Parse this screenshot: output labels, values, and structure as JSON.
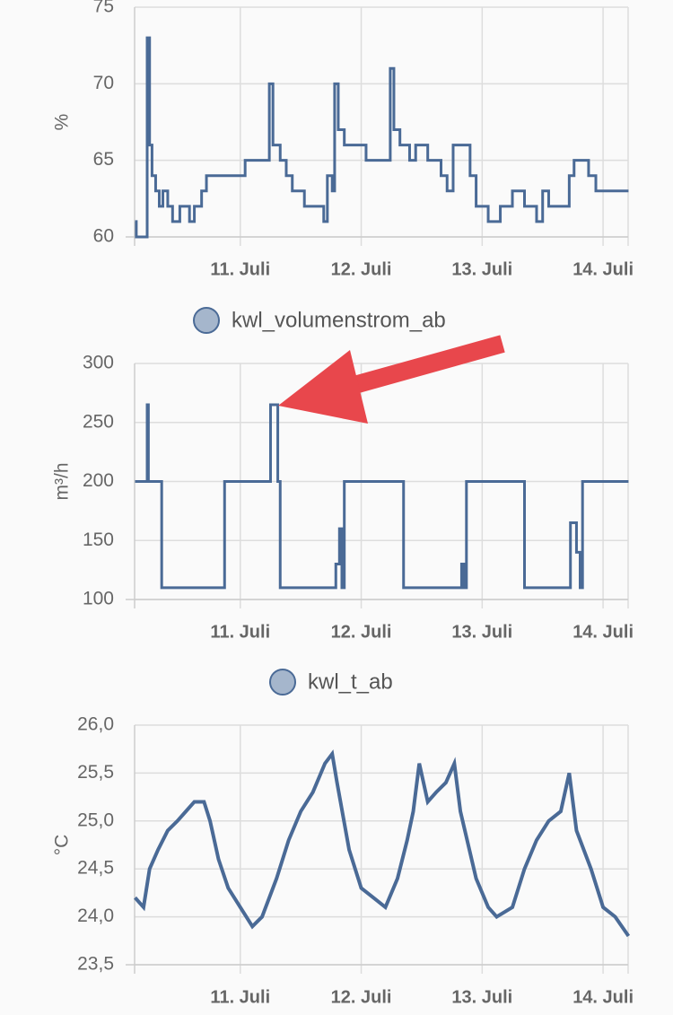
{
  "chart_data": [
    {
      "type": "line",
      "step": true,
      "y_label": "%",
      "x": [
        10.13,
        10.14,
        10.23,
        10.23,
        10.25,
        10.27,
        10.3,
        10.33,
        10.36,
        10.4,
        10.44,
        10.5,
        10.58,
        10.62,
        10.68,
        10.72,
        10.95,
        11.04,
        11.24,
        11.24,
        11.27,
        11.33,
        11.38,
        11.43,
        11.53,
        11.64,
        11.69,
        11.72,
        11.76,
        11.78,
        11.81,
        11.86,
        12.04,
        12.22,
        12.24,
        12.27,
        12.32,
        12.4,
        12.45,
        12.55,
        12.66,
        12.71,
        12.76,
        12.9,
        12.95,
        13.05,
        13.15,
        13.25,
        13.35,
        13.45,
        13.5,
        13.55,
        13.69,
        13.72,
        13.76,
        13.88,
        13.94,
        14.21
      ],
      "series": [
        {
          "color": "#4a6a96",
          "values": [
            61,
            60,
            60,
            73,
            66,
            64,
            63,
            62,
            63,
            62,
            61,
            62,
            61,
            62,
            63,
            64,
            64,
            65,
            65,
            70,
            66,
            65,
            64,
            63,
            62,
            62,
            61,
            64,
            63,
            70,
            67,
            66,
            65,
            65,
            71,
            67,
            66,
            65,
            66,
            65,
            64,
            63,
            66,
            64,
            62,
            61,
            62,
            63,
            62,
            61,
            63,
            62,
            62,
            64,
            65,
            64,
            63,
            63
          ]
        }
      ],
      "xlim": [
        10.126,
        14.207
      ],
      "xticks": [
        {
          "value": 11,
          "label": "11. Juli"
        },
        {
          "value": 12,
          "label": "12. Juli"
        },
        {
          "value": 13,
          "label": "13. Juli"
        },
        {
          "value": 14,
          "label": "14. Juli"
        }
      ],
      "ylim": [
        60,
        75
      ],
      "yticks": [
        60,
        65,
        70,
        75
      ],
      "grid": true
    },
    {
      "type": "line",
      "step": true,
      "y_label": "m³/h",
      "x": [
        10.13,
        10.2,
        10.23,
        10.24,
        10.33,
        10.35,
        10.85,
        10.87,
        11.24,
        11.25,
        11.29,
        11.31,
        11.33,
        11.75,
        11.79,
        11.82,
        11.84,
        11.86,
        12.33,
        12.35,
        12.8,
        12.83,
        12.85,
        12.87,
        13.33,
        13.35,
        13.71,
        13.73,
        13.78,
        13.81,
        13.83,
        14.21
      ],
      "series": [
        {
          "name": "kwl_volumenstrom_ab",
          "color": "#4a6a96",
          "values": [
            200,
            200,
            265,
            200,
            200,
            110,
            110,
            200,
            200,
            265,
            265,
            200,
            110,
            110,
            130,
            160,
            110,
            200,
            200,
            110,
            110,
            130,
            110,
            200,
            200,
            110,
            110,
            165,
            140,
            110,
            200,
            200
          ]
        }
      ],
      "xlim": [
        10.126,
        14.207
      ],
      "xticks": [
        {
          "value": 11,
          "label": "11. Juli"
        },
        {
          "value": 12,
          "label": "12. Juli"
        },
        {
          "value": 13,
          "label": "13. Juli"
        },
        {
          "value": 14,
          "label": "14. Juli"
        }
      ],
      "ylim": [
        100,
        300
      ],
      "yticks": [
        100,
        150,
        200,
        250,
        300
      ],
      "grid": true
    },
    {
      "type": "line",
      "step": false,
      "y_label": "°C",
      "x": [
        10.13,
        10.2,
        10.25,
        10.32,
        10.4,
        10.48,
        10.55,
        10.62,
        10.7,
        10.75,
        10.82,
        10.9,
        11.0,
        11.1,
        11.18,
        11.3,
        11.4,
        11.5,
        11.6,
        11.7,
        11.76,
        11.8,
        11.9,
        12.0,
        12.1,
        12.2,
        12.3,
        12.38,
        12.43,
        12.48,
        12.55,
        12.62,
        12.7,
        12.77,
        12.82,
        12.95,
        13.05,
        13.12,
        13.25,
        13.35,
        13.45,
        13.55,
        13.65,
        13.72,
        13.78,
        13.9,
        14.0,
        14.1,
        14.21
      ],
      "series": [
        {
          "name": "kwl_t_ab",
          "color": "#4a6a96",
          "values": [
            24.2,
            24.1,
            24.5,
            24.7,
            24.9,
            25.0,
            25.1,
            25.2,
            25.2,
            25.0,
            24.6,
            24.3,
            24.1,
            23.9,
            24.0,
            24.4,
            24.8,
            25.1,
            25.3,
            25.6,
            25.7,
            25.4,
            24.7,
            24.3,
            24.2,
            24.1,
            24.4,
            24.8,
            25.1,
            25.6,
            25.2,
            25.3,
            25.4,
            25.6,
            25.1,
            24.4,
            24.1,
            24.0,
            24.1,
            24.5,
            24.8,
            25.0,
            25.1,
            25.5,
            24.9,
            24.5,
            24.1,
            24.0,
            23.8
          ]
        }
      ],
      "xlim": [
        10.126,
        14.207
      ],
      "xticks": [
        {
          "value": 11,
          "label": "11. Juli"
        },
        {
          "value": 12,
          "label": "12. Juli"
        },
        {
          "value": 13,
          "label": "13. Juli"
        },
        {
          "value": 14,
          "label": "14. Juli"
        }
      ],
      "ylim": [
        23.5,
        26
      ],
      "yticks": [
        {
          "value": 23.5,
          "label": "23,5"
        },
        {
          "value": 24,
          "label": "24,0"
        },
        {
          "value": 24.5,
          "label": "24,5"
        },
        {
          "value": 25,
          "label": "25,0"
        },
        {
          "value": 25.5,
          "label": "25,5"
        },
        {
          "value": 26,
          "label": "26,0"
        }
      ],
      "grid": true
    }
  ]
}
